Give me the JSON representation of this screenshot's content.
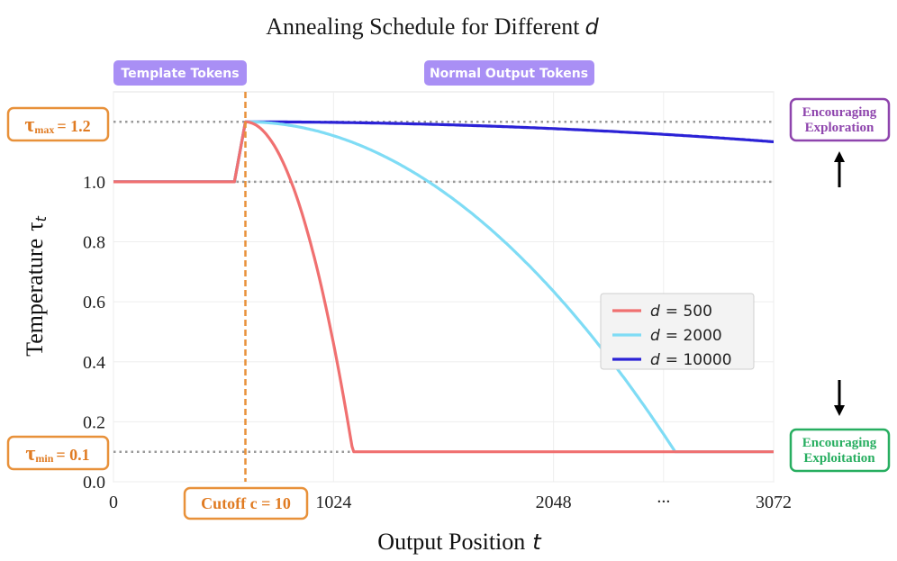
{
  "colors": {
    "series_500": "#f07070",
    "series_2000": "#7fdcf5",
    "series_10000": "#2b22d6",
    "cutoff": "#e8913a",
    "refline": "#999999",
    "pill": "#a98ff5",
    "explore": "#8e44ad",
    "exploit": "#27ae60",
    "annot_orange": "#e07b22"
  },
  "chart_data": {
    "type": "line",
    "title": "Annealing Schedule for Different",
    "title_var": "d",
    "xlabel": "Output Position",
    "xlabel_var": "t",
    "ylabel": "Temperature",
    "ylabel_sym": "τ",
    "ylabel_sub": "t",
    "xlim": [
      0,
      3072
    ],
    "ylim": [
      0,
      1.3
    ],
    "xticks": [
      {
        "value": 0,
        "label": "0"
      },
      {
        "value": 1024,
        "label": "1024"
      },
      {
        "value": 2048,
        "label": "2048"
      },
      {
        "value": 2560,
        "label": "..."
      },
      {
        "value": 3072,
        "label": "3072"
      }
    ],
    "yticks": [
      {
        "value": 0.0,
        "label": "0.0"
      },
      {
        "value": 0.2,
        "label": "0.2"
      },
      {
        "value": 0.4,
        "label": "0.4"
      },
      {
        "value": 0.6,
        "label": "0.6"
      },
      {
        "value": 0.8,
        "label": "0.8"
      },
      {
        "value": 1.0,
        "label": "1.0"
      }
    ],
    "tau_max": 1.2,
    "tau_min": 0.1,
    "base_temperature": 1.0,
    "cutoff": 10,
    "cutoff_x": 614,
    "warmup_start_x": 563,
    "legend_var": "d",
    "series": [
      {
        "name": "= 500",
        "d": 500,
        "color_key": "series_500"
      },
      {
        "name": "= 2000",
        "d": 2000,
        "color_key": "series_2000"
      },
      {
        "name": "= 10000",
        "d": 10000,
        "color_key": "series_10000"
      }
    ],
    "regions": [
      {
        "label": "Template Tokens"
      },
      {
        "label": "Normal Output Tokens"
      }
    ],
    "annotations": {
      "tau_max_sym": "τ",
      "tau_max_sub": "max",
      "tau_max_value": "= 1.2",
      "tau_min_sym": "τ",
      "tau_min_sub": "min",
      "tau_min_value": "= 0.1",
      "cutoff_label": "Cutoff c = 10",
      "explore_line1": "Encouraging",
      "explore_line2": "Exploration",
      "exploit_line1": "Encouraging",
      "exploit_line2": "Exploitation"
    }
  }
}
